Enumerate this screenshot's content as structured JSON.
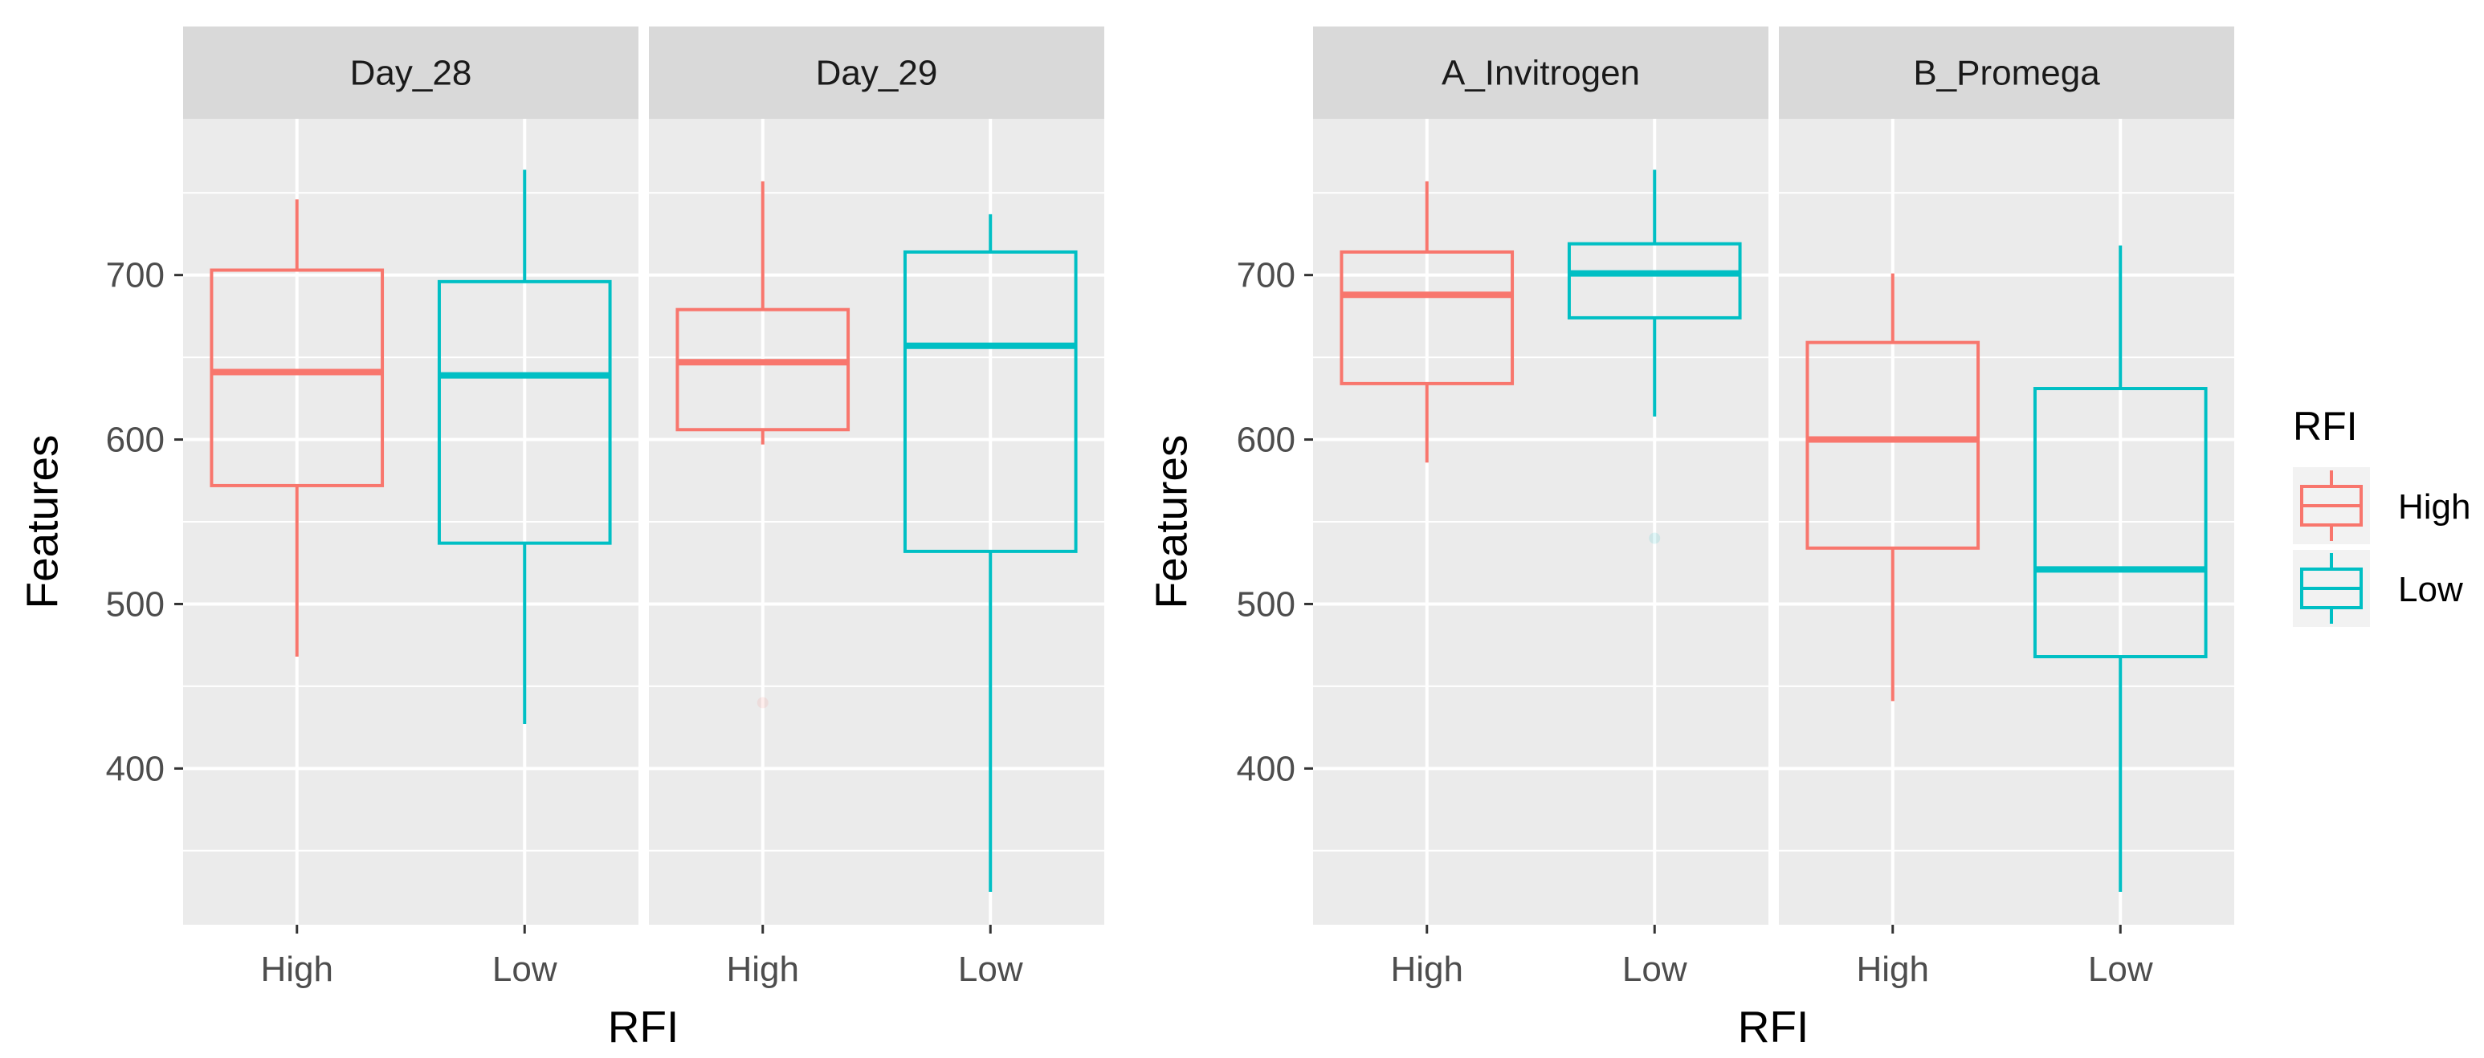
{
  "colors": {
    "High": "#F8766D",
    "Low": "#00BFC4",
    "panel_bg": "#EBEBEB",
    "strip_bg": "#D9D9D9",
    "grid": "#FFFFFF"
  },
  "legend": {
    "title": "RFI",
    "items": [
      {
        "label": "High",
        "color": "#F8766D"
      },
      {
        "label": "Low",
        "color": "#00BFC4"
      }
    ],
    "placement": "right"
  },
  "chart_data": [
    {
      "type": "boxplot",
      "xlabel": "RFI",
      "ylabel": "Features",
      "ylim": [
        305,
        795
      ],
      "yticks": [
        400,
        500,
        600,
        700
      ],
      "grid": true,
      "categories": [
        "High",
        "Low"
      ],
      "facets": [
        {
          "strip": "Day_28",
          "boxes": [
            {
              "group": "High",
              "lower": 468,
              "q1": 572,
              "median": 641,
              "q3": 703,
              "upper": 746,
              "outliers": []
            },
            {
              "group": "Low",
              "lower": 427,
              "q1": 537,
              "median": 639,
              "q3": 696,
              "upper": 764,
              "outliers": []
            }
          ]
        },
        {
          "strip": "Day_29",
          "boxes": [
            {
              "group": "High",
              "lower": 597,
              "q1": 606,
              "median": 647,
              "q3": 679,
              "upper": 757,
              "outliers": [
                440
              ]
            },
            {
              "group": "Low",
              "lower": 325,
              "q1": 532,
              "median": 657,
              "q3": 714,
              "upper": 737,
              "outliers": []
            }
          ]
        }
      ]
    },
    {
      "type": "boxplot",
      "xlabel": "RFI",
      "ylabel": "Features",
      "ylim": [
        305,
        795
      ],
      "yticks": [
        400,
        500,
        600,
        700
      ],
      "grid": true,
      "categories": [
        "High",
        "Low"
      ],
      "facets": [
        {
          "strip": "A_Invitrogen",
          "boxes": [
            {
              "group": "High",
              "lower": 586,
              "q1": 634,
              "median": 688,
              "q3": 714,
              "upper": 757,
              "outliers": []
            },
            {
              "group": "Low",
              "lower": 614,
              "q1": 674,
              "median": 701,
              "q3": 719,
              "upper": 764,
              "outliers": [
                540
              ]
            }
          ]
        },
        {
          "strip": "B_Promega",
          "boxes": [
            {
              "group": "High",
              "lower": 441,
              "q1": 534,
              "median": 600,
              "q3": 659,
              "upper": 701,
              "outliers": []
            },
            {
              "group": "Low",
              "lower": 325,
              "q1": 468,
              "median": 521,
              "q3": 631,
              "upper": 718,
              "outliers": []
            }
          ]
        }
      ]
    }
  ]
}
